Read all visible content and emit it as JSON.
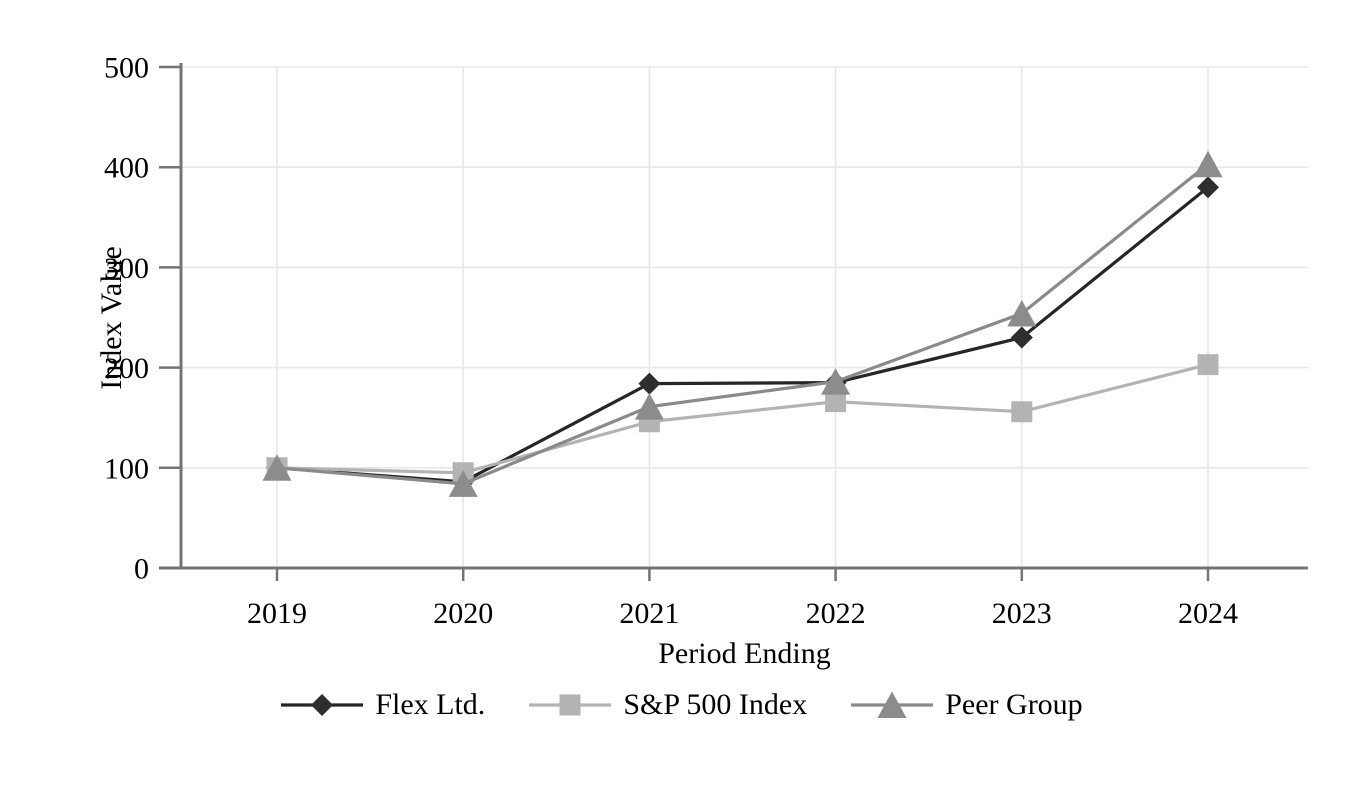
{
  "chart_data": {
    "type": "line",
    "title": "",
    "xlabel": "Period Ending",
    "ylabel": "Index Value",
    "categories": [
      "2019",
      "2020",
      "2021",
      "2022",
      "2023",
      "2024"
    ],
    "series": [
      {
        "name": "Flex Ltd.",
        "marker": "diamond",
        "line_color": "#262626",
        "marker_color": "#2e2e2e",
        "values": [
          100,
          86,
          184,
          185,
          230,
          380
        ]
      },
      {
        "name": "S&P 500 Index",
        "marker": "square",
        "line_color": "#b3b3b3",
        "marker_color": "#b3b3b3",
        "values": [
          100,
          95,
          146,
          166,
          156,
          203
        ]
      },
      {
        "name": "Peer Group",
        "marker": "triangle",
        "line_color": "#8a8a8a",
        "marker_color": "#8c8c8c",
        "values": [
          100,
          84,
          161,
          186,
          254,
          403
        ]
      }
    ],
    "ylim": [
      0,
      500
    ],
    "yticks": [
      0,
      100,
      200,
      300,
      400,
      500
    ],
    "grid": true,
    "legend_position": "bottom",
    "colors": {
      "grid": "#e8e8e8",
      "axis": "#747474",
      "text": "#000000",
      "background": "#ffffff"
    }
  }
}
